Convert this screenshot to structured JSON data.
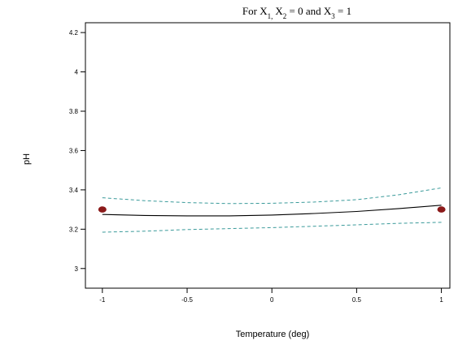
{
  "chart_data": {
    "type": "line",
    "title_parts": {
      "prefix": "For X",
      "sub1": "1,",
      "mid": "X",
      "sub2": "2",
      "mid2": " = 0 and X",
      "sub3": "3",
      "suffix": " = 1"
    },
    "xlabel": "Temperature (deg)",
    "ylabel": "pH",
    "xlim": [
      -1.1,
      1.05
    ],
    "ylim": [
      2.9,
      4.25
    ],
    "x_ticks": [
      -1,
      -0.5,
      0,
      0.5,
      1
    ],
    "x_tick_labels": [
      "-1",
      "-0.5",
      "0",
      "0.5",
      "1"
    ],
    "y_ticks": [
      3,
      3.2,
      3.4,
      3.6,
      3.8,
      4,
      4.2
    ],
    "y_tick_labels": [
      "3",
      "3.2",
      "3.4",
      "3.6",
      "3.8",
      "4",
      "4.2"
    ],
    "grid": false,
    "colors": {
      "fit_line": "#000000",
      "confidence_band": "#3a9a9a",
      "design_points": "#8b1a1a",
      "axes": "#000000"
    },
    "series": [
      {
        "role": "fit",
        "style": "solid",
        "x": [
          -1,
          -0.75,
          -0.5,
          -0.25,
          0,
          0.25,
          0.5,
          0.75,
          1
        ],
        "y": [
          3.275,
          3.27,
          3.268,
          3.268,
          3.272,
          3.28,
          3.29,
          3.305,
          3.322
        ]
      },
      {
        "role": "upper-confidence",
        "style": "dashed",
        "x": [
          -1,
          -0.75,
          -0.5,
          -0.25,
          0,
          0.25,
          0.5,
          0.75,
          1
        ],
        "y": [
          3.36,
          3.345,
          3.335,
          3.33,
          3.332,
          3.338,
          3.35,
          3.375,
          3.41
        ]
      },
      {
        "role": "lower-confidence",
        "style": "dashed",
        "x": [
          -1,
          -0.75,
          -0.5,
          -0.25,
          0,
          0.25,
          0.5,
          0.75,
          1
        ],
        "y": [
          3.185,
          3.19,
          3.198,
          3.203,
          3.208,
          3.215,
          3.222,
          3.23,
          3.235
        ]
      }
    ],
    "points": [
      {
        "x": -1,
        "y": 3.3
      },
      {
        "x": 1,
        "y": 3.3
      }
    ]
  }
}
